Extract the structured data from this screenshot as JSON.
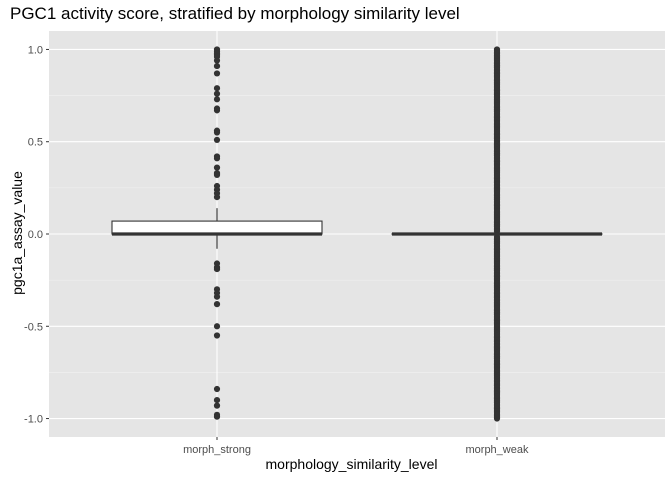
{
  "chart_data": {
    "type": "box",
    "title": "PGC1 activity score, stratified by morphology similarity level",
    "xlabel": "morphology_similarity_level",
    "ylabel": "pgc1a_assay_value",
    "categories": [
      "morph_strong",
      "morph_weak"
    ],
    "ylim": [
      -1.1,
      1.1
    ],
    "yticks": [
      -1.0,
      -0.5,
      0.0,
      0.5,
      1.0
    ],
    "ytick_labels": [
      "-1.0",
      "-0.5",
      "0.0",
      "0.5",
      "1.0"
    ],
    "grid": true,
    "legend": "none",
    "boxes": [
      {
        "category": "morph_strong",
        "q1": 0.0,
        "median": 0.0,
        "q3": 0.07,
        "whisker_low": -0.08,
        "whisker_high": 0.14,
        "outliers": [
          1.0,
          0.99,
          0.98,
          0.97,
          0.96,
          0.94,
          0.91,
          0.87,
          0.79,
          0.76,
          0.73,
          0.68,
          0.67,
          0.56,
          0.55,
          0.51,
          0.42,
          0.41,
          0.36,
          0.33,
          0.32,
          0.26,
          0.24,
          0.22,
          0.2,
          -0.16,
          -0.18,
          -0.19,
          -0.3,
          -0.32,
          -0.34,
          -0.38,
          -0.5,
          -0.55,
          -0.84,
          -0.9,
          -0.93,
          -0.98,
          -0.99
        ]
      },
      {
        "category": "morph_weak",
        "q1": 0.0,
        "median": 0.0,
        "q3": 0.0,
        "whisker_low": 0.0,
        "whisker_high": 0.0,
        "outlier_range": [
          -1.0,
          1.0
        ]
      }
    ],
    "colors": {
      "panel_background": "#E5E5E5",
      "grid_major": "#FFFFFF",
      "grid_minor": "#F2F2F2",
      "box_fill": "#FFFFFF",
      "box_line": "#333333",
      "points": "#333333",
      "tick_text": "#4D4D4D"
    }
  }
}
